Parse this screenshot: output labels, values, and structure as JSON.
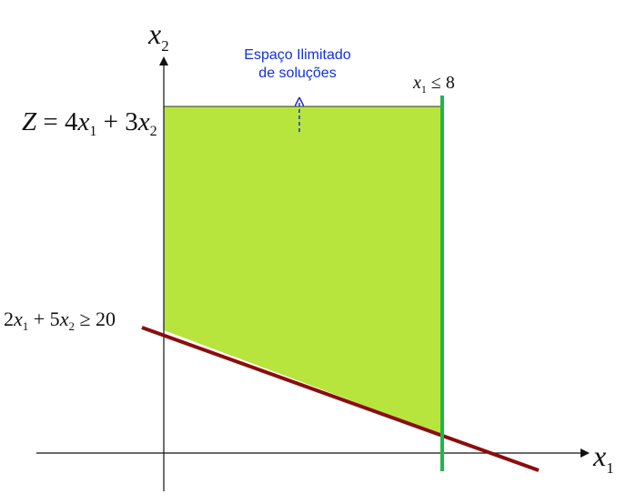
{
  "axes": {
    "x_axis_var": "x",
    "x_axis_sub": "1",
    "y_axis_var": "x",
    "y_axis_sub": "2"
  },
  "objective": {
    "z": "Z",
    "eq": " = 4",
    "v1": "x",
    "s1": "1",
    "plus": " + 3",
    "v2": "x",
    "s2": "2"
  },
  "constraint_x1": {
    "v": "x",
    "s": "1",
    "rel": " ≤ 8"
  },
  "constraint_lin": {
    "c1": "2",
    "v1": "x",
    "s1": "1",
    "plus": " + 5",
    "v2": "x",
    "s2": "2",
    "rel": " ≥ 20"
  },
  "annotation": {
    "line1": "Espaço Ilimitado",
    "line2": "de soluções"
  },
  "colors": {
    "region_fill": "#b7e53d",
    "vertical_line": "#1fb64a",
    "constraint_line": "#8b0d0d",
    "annotation": "#1530d8",
    "axis": "#111111"
  }
}
